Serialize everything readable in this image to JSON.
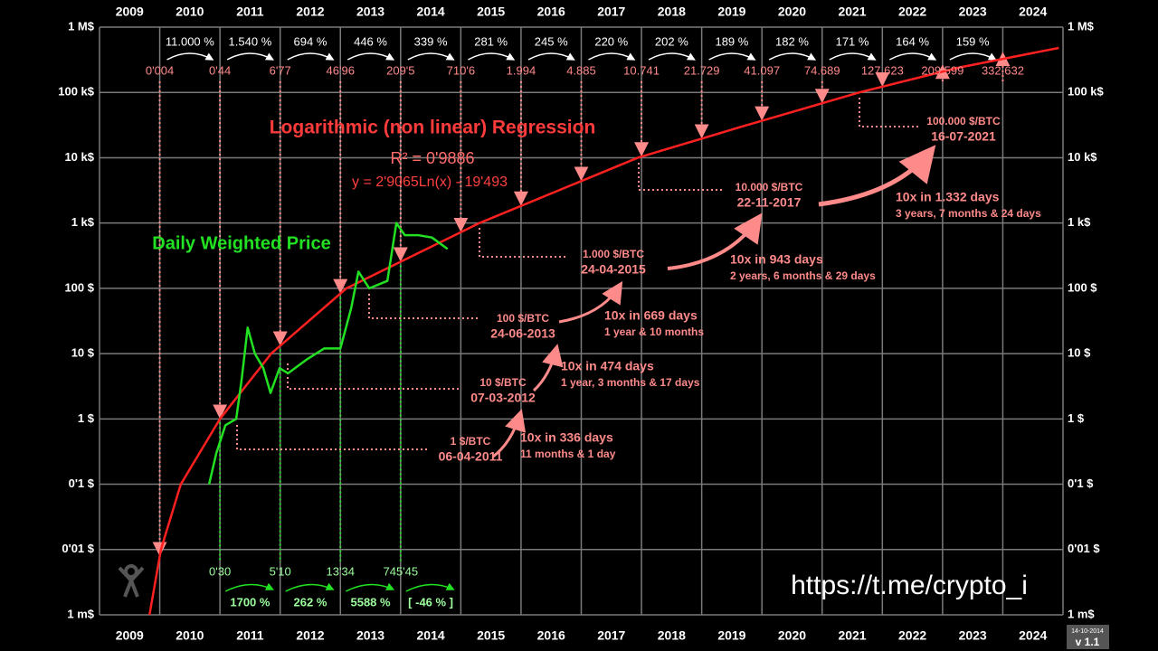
{
  "chart_data": {
    "type": "line",
    "log_y": true,
    "grid": true,
    "categories": [
      "2009",
      "2010",
      "2011",
      "2012",
      "2013",
      "2014",
      "2015",
      "2016",
      "2017",
      "2018",
      "2019",
      "2020",
      "2021",
      "2022",
      "2023",
      "2024"
    ],
    "xlim": [
      2009,
      2025
    ],
    "ylim": [
      0.001,
      1000000
    ],
    "yticks": [
      {
        "value": 0.001,
        "label": "1 m$"
      },
      {
        "value": 0.01,
        "label": "0'01 $"
      },
      {
        "value": 0.1,
        "label": "0'1 $"
      },
      {
        "value": 1,
        "label": "1 $"
      },
      {
        "value": 10,
        "label": "10 $"
      },
      {
        "value": 100,
        "label": "100 $"
      },
      {
        "value": 1000,
        "label": "1 k$"
      },
      {
        "value": 10000,
        "label": "10 k$"
      },
      {
        "value": 100000,
        "label": "100 k$"
      },
      {
        "value": 1000000,
        "label": "1 M$"
      }
    ],
    "series": [
      {
        "name": "Daily Weighted Price",
        "color": "#22e022",
        "x": [
          2010.82,
          2010.94,
          2011.09,
          2011.27,
          2011.36,
          2011.46,
          2011.58,
          2011.72,
          2011.84,
          2011.99,
          2012.13,
          2012.43,
          2012.73,
          2013.0,
          2013.18,
          2013.3,
          2013.48,
          2013.78,
          2013.93,
          2014.07,
          2014.3,
          2014.52,
          2014.78
        ],
        "values": [
          0.1,
          0.3,
          0.8,
          1,
          4,
          25,
          10,
          6,
          2.5,
          6,
          5,
          8,
          12,
          12,
          50,
          180,
          100,
          130,
          1000,
          650,
          650,
          600,
          400
        ]
      },
      {
        "name": "Logarithmic (non linear) Regression",
        "color": "#ff2020",
        "x": [
          2009.83,
          2010.02,
          2010.35,
          2011.0,
          2011.85,
          2013.1,
          2015.31,
          2017.94,
          2019.67,
          2021.62,
          2023.27,
          2024.93
        ],
        "values": [
          0.001,
          0.01,
          0.1,
          1,
          10,
          100,
          1000,
          10000,
          30000,
          100000,
          240000,
          480000
        ]
      }
    ],
    "annotations": {
      "r2": "R² = 0'9886",
      "formula": "y = 2'9065Ln(x) - 19'493",
      "growth_pct": [
        "11.000 %",
        "1.540 %",
        "694 %",
        "446 %",
        "339 %",
        "281 %",
        "245 %",
        "220 %",
        "202 %",
        "189 %",
        "182 %",
        "171 %",
        "164 %",
        "159 %"
      ],
      "yearly_values": [
        "0'004",
        "0'44",
        "6'77",
        "46'96",
        "209'5",
        "710'6",
        "1.994",
        "4.885",
        "10.741",
        "21.729",
        "41.097",
        "74.689",
        "127.623",
        "209.599",
        "332.632"
      ],
      "early_prices": [
        "0'30",
        "5'10",
        "13'34",
        "745'45"
      ],
      "early_growth": [
        "1700 %",
        "262 %",
        "5588 %",
        "[ -46 % ]"
      ],
      "milestones": [
        {
          "price": "1 $/BTC",
          "date": "06-04-2011"
        },
        {
          "price": "10 $/BTC",
          "date": "07-03-2012"
        },
        {
          "price": "100 $/BTC",
          "date": "24-06-2013"
        },
        {
          "price": "1.000 $/BTC",
          "date": "24-04-2015"
        },
        {
          "price": "10.000 $/BTC",
          "date": "22-11-2017"
        },
        {
          "price": "100.000 $/BTC",
          "date": "16-07-2021"
        }
      ],
      "spans": [
        {
          "days": "10x in 336 days",
          "detail": "11 months & 1 day"
        },
        {
          "days": "10x in 474 days",
          "detail": "1 year, 3 months & 17 days"
        },
        {
          "days": "10x in 669 days",
          "detail": "1 year & 10 months"
        },
        {
          "days": "10x in 943 days",
          "detail": "2 years, 6 months & 29 days"
        },
        {
          "days": "10x in 1.332 days",
          "detail": "3 years, 7 months & 24 days"
        }
      ]
    },
    "url": "https://t.me/crypto_i",
    "version_date": "14-10-2014",
    "version": "v 1.1"
  }
}
